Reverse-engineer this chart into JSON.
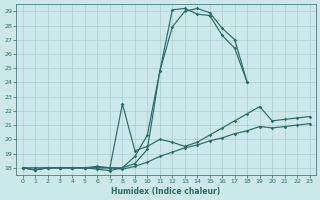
{
  "xlabel": "Humidex (Indice chaleur)",
  "ylabel": "",
  "line_color": "#2a6b6b",
  "bg_color": "#cce8e8",
  "grid_color": "#aacfcf",
  "xlim": [
    -0.5,
    23.5
  ],
  "ylim": [
    17.5,
    29.5
  ],
  "yticks": [
    18,
    19,
    20,
    21,
    22,
    23,
    24,
    25,
    26,
    27,
    28,
    29
  ],
  "xticks": [
    0,
    1,
    2,
    3,
    4,
    5,
    6,
    7,
    8,
    9,
    10,
    11,
    12,
    13,
    14,
    15,
    16,
    17,
    18,
    19,
    20,
    21,
    22,
    23
  ],
  "line1_x": [
    0,
    1,
    2,
    3,
    4,
    5,
    6,
    7,
    8,
    9,
    10,
    11,
    12,
    13,
    14,
    15,
    16,
    17,
    18
  ],
  "line1_y": [
    18.0,
    17.85,
    18.0,
    18.0,
    18.0,
    18.0,
    17.9,
    17.8,
    18.0,
    18.8,
    20.3,
    24.8,
    29.1,
    29.2,
    28.8,
    28.7,
    27.3,
    26.4,
    24.0
  ],
  "line2_x": [
    0,
    1,
    2,
    3,
    4,
    5,
    6,
    7,
    8,
    9,
    10,
    11,
    12,
    13,
    14,
    15,
    16,
    17,
    18
  ],
  "line2_y": [
    18.0,
    17.85,
    18.0,
    18.0,
    18.0,
    18.0,
    18.0,
    18.0,
    18.0,
    18.3,
    19.3,
    24.8,
    27.9,
    29.0,
    29.2,
    28.9,
    27.8,
    27.0,
    24.0
  ],
  "line3_x": [
    0,
    1,
    2,
    3,
    4,
    5,
    6,
    7,
    8,
    9,
    10,
    11,
    12,
    13,
    14,
    15,
    16,
    17,
    18,
    19,
    20,
    21,
    22,
    23
  ],
  "line3_y": [
    18.0,
    17.85,
    18.0,
    18.0,
    18.0,
    18.0,
    18.1,
    18.0,
    22.5,
    19.2,
    19.5,
    20.0,
    19.8,
    19.5,
    19.8,
    20.3,
    20.8,
    21.3,
    21.8,
    22.3,
    21.3,
    21.4,
    21.5,
    21.6
  ],
  "line4_x": [
    0,
    1,
    2,
    3,
    4,
    5,
    6,
    7,
    8,
    9,
    10,
    11,
    12,
    13,
    14,
    15,
    16,
    17,
    18,
    19,
    20,
    21,
    22,
    23
  ],
  "line4_y": [
    18.0,
    18.0,
    18.0,
    18.0,
    18.0,
    18.0,
    18.0,
    18.0,
    17.9,
    18.1,
    18.4,
    18.8,
    19.1,
    19.4,
    19.6,
    19.9,
    20.1,
    20.4,
    20.6,
    20.9,
    20.8,
    20.9,
    21.0,
    21.1
  ]
}
